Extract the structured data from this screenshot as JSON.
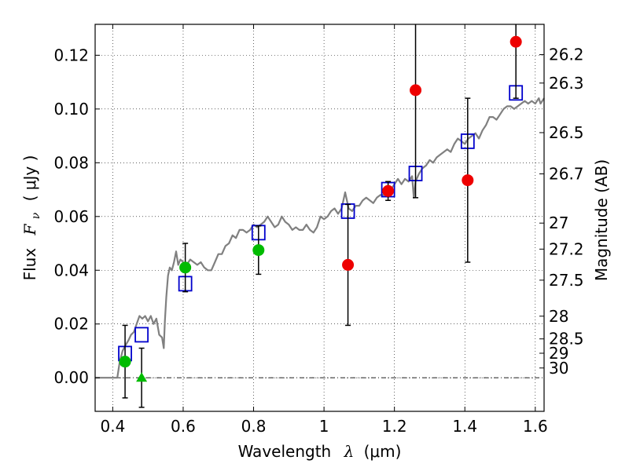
{
  "chart_data": {
    "type": "scatter",
    "xlabel_prefix": "Wavelength",
    "xlabel_lambda": "λ",
    "xlabel_unit": "(μm)",
    "ylabel_prefix": "Flux",
    "ylabel_symbol": "F",
    "ylabel_sub": "ν",
    "ylabel_unit": "( μJy )",
    "y2label": "Magnitude (AB)",
    "xlim": [
      0.35,
      1.625
    ],
    "ylim": [
      -0.0125,
      0.1315
    ],
    "x_ticks": [
      {
        "value": 0.4,
        "label": "0.4"
      },
      {
        "value": 0.6,
        "label": "0.6"
      },
      {
        "value": 0.8,
        "label": "0.8"
      },
      {
        "value": 1.0,
        "label": "1"
      },
      {
        "value": 1.2,
        "label": "1.2"
      },
      {
        "value": 1.4,
        "label": "1.4"
      },
      {
        "value": 1.6,
        "label": "1.6"
      }
    ],
    "y_ticks": [
      {
        "value": 0.0,
        "label": "0.00"
      },
      {
        "value": 0.02,
        "label": "0.02"
      },
      {
        "value": 0.04,
        "label": "0.04"
      },
      {
        "value": 0.06,
        "label": "0.06"
      },
      {
        "value": 0.08,
        "label": "0.08"
      },
      {
        "value": 0.1,
        "label": "0.10"
      },
      {
        "value": 0.12,
        "label": "0.12"
      }
    ],
    "mag_ticks": [
      {
        "mag": 26.2,
        "label": "26.2"
      },
      {
        "mag": 26.3,
        "label": "26.3"
      },
      {
        "mag": 26.5,
        "label": "26.5"
      },
      {
        "mag": 26.7,
        "label": "26.7"
      },
      {
        "mag": 27.0,
        "label": "27"
      },
      {
        "mag": 27.2,
        "label": "27.2"
      },
      {
        "mag": 27.5,
        "label": "27.5"
      },
      {
        "mag": 28.0,
        "label": "28"
      },
      {
        "mag": 28.5,
        "label": "28.5"
      },
      {
        "mag": 29.0,
        "label": "29"
      },
      {
        "mag": 30.0,
        "label": "30"
      }
    ],
    "grid": true,
    "series": [
      {
        "name": "model-sed",
        "style": "line",
        "color": "#808080",
        "points": [
          [
            0.35,
            0.0
          ],
          [
            0.4,
            0.0
          ],
          [
            0.413,
            0.0
          ],
          [
            0.42,
            0.006
          ],
          [
            0.428,
            0.01
          ],
          [
            0.436,
            0.012
          ],
          [
            0.445,
            0.014
          ],
          [
            0.452,
            0.016
          ],
          [
            0.46,
            0.017
          ],
          [
            0.468,
            0.02
          ],
          [
            0.476,
            0.023
          ],
          [
            0.484,
            0.022
          ],
          [
            0.492,
            0.023
          ],
          [
            0.5,
            0.021
          ],
          [
            0.508,
            0.023
          ],
          [
            0.516,
            0.02
          ],
          [
            0.524,
            0.022
          ],
          [
            0.532,
            0.016
          ],
          [
            0.54,
            0.015
          ],
          [
            0.545,
            0.011
          ],
          [
            0.548,
            0.021
          ],
          [
            0.552,
            0.03
          ],
          [
            0.557,
            0.038
          ],
          [
            0.562,
            0.041
          ],
          [
            0.568,
            0.04
          ],
          [
            0.574,
            0.043
          ],
          [
            0.58,
            0.047
          ],
          [
            0.586,
            0.042
          ],
          [
            0.592,
            0.044
          ],
          [
            0.6,
            0.043
          ],
          [
            0.61,
            0.042
          ],
          [
            0.62,
            0.044
          ],
          [
            0.63,
            0.043
          ],
          [
            0.64,
            0.042
          ],
          [
            0.65,
            0.043
          ],
          [
            0.66,
            0.041
          ],
          [
            0.67,
            0.04
          ],
          [
            0.68,
            0.04
          ],
          [
            0.69,
            0.043
          ],
          [
            0.7,
            0.046
          ],
          [
            0.71,
            0.046
          ],
          [
            0.72,
            0.049
          ],
          [
            0.73,
            0.05
          ],
          [
            0.74,
            0.053
          ],
          [
            0.75,
            0.052
          ],
          [
            0.76,
            0.055
          ],
          [
            0.77,
            0.055
          ],
          [
            0.78,
            0.054
          ],
          [
            0.79,
            0.055
          ],
          [
            0.8,
            0.057
          ],
          [
            0.81,
            0.056
          ],
          [
            0.82,
            0.057
          ],
          [
            0.83,
            0.058
          ],
          [
            0.84,
            0.06
          ],
          [
            0.85,
            0.058
          ],
          [
            0.86,
            0.056
          ],
          [
            0.87,
            0.057
          ],
          [
            0.88,
            0.06
          ],
          [
            0.89,
            0.058
          ],
          [
            0.9,
            0.057
          ],
          [
            0.91,
            0.055
          ],
          [
            0.92,
            0.056
          ],
          [
            0.93,
            0.055
          ],
          [
            0.94,
            0.055
          ],
          [
            0.95,
            0.057
          ],
          [
            0.96,
            0.055
          ],
          [
            0.97,
            0.054
          ],
          [
            0.98,
            0.056
          ],
          [
            0.99,
            0.06
          ],
          [
            1.0,
            0.059
          ],
          [
            1.01,
            0.06
          ],
          [
            1.02,
            0.062
          ],
          [
            1.03,
            0.063
          ],
          [
            1.04,
            0.061
          ],
          [
            1.05,
            0.063
          ],
          [
            1.06,
            0.069
          ],
          [
            1.07,
            0.063
          ],
          [
            1.08,
            0.062
          ],
          [
            1.09,
            0.064
          ],
          [
            1.1,
            0.064
          ],
          [
            1.11,
            0.066
          ],
          [
            1.12,
            0.067
          ],
          [
            1.13,
            0.066
          ],
          [
            1.14,
            0.065
          ],
          [
            1.15,
            0.067
          ],
          [
            1.16,
            0.068
          ],
          [
            1.17,
            0.068
          ],
          [
            1.18,
            0.07
          ],
          [
            1.19,
            0.07
          ],
          [
            1.2,
            0.072
          ],
          [
            1.21,
            0.074
          ],
          [
            1.22,
            0.072
          ],
          [
            1.23,
            0.074
          ],
          [
            1.24,
            0.073
          ],
          [
            1.25,
            0.075
          ],
          [
            1.255,
            0.067
          ],
          [
            1.26,
            0.073
          ],
          [
            1.27,
            0.076
          ],
          [
            1.28,
            0.078
          ],
          [
            1.29,
            0.079
          ],
          [
            1.3,
            0.081
          ],
          [
            1.31,
            0.08
          ],
          [
            1.32,
            0.082
          ],
          [
            1.33,
            0.083
          ],
          [
            1.34,
            0.084
          ],
          [
            1.35,
            0.085
          ],
          [
            1.36,
            0.084
          ],
          [
            1.37,
            0.087
          ],
          [
            1.38,
            0.089
          ],
          [
            1.39,
            0.088
          ],
          [
            1.4,
            0.087
          ],
          [
            1.41,
            0.089
          ],
          [
            1.42,
            0.09
          ],
          [
            1.43,
            0.091
          ],
          [
            1.44,
            0.089
          ],
          [
            1.45,
            0.092
          ],
          [
            1.46,
            0.094
          ],
          [
            1.47,
            0.097
          ],
          [
            1.48,
            0.097
          ],
          [
            1.49,
            0.096
          ],
          [
            1.5,
            0.098
          ],
          [
            1.51,
            0.1
          ],
          [
            1.52,
            0.101
          ],
          [
            1.53,
            0.101
          ],
          [
            1.54,
            0.1
          ],
          [
            1.55,
            0.101
          ],
          [
            1.56,
            0.102
          ],
          [
            1.57,
            0.103
          ],
          [
            1.58,
            0.102
          ],
          [
            1.59,
            0.103
          ],
          [
            1.6,
            0.102
          ],
          [
            1.61,
            0.104
          ],
          [
            1.615,
            0.102
          ],
          [
            1.625,
            0.104
          ]
        ]
      },
      {
        "name": "model-photometry",
        "style": "open-square",
        "color": "#0000cc",
        "points": [
          [
            0.435,
            0.009
          ],
          [
            0.482,
            0.016
          ],
          [
            0.606,
            0.035
          ],
          [
            0.814,
            0.054
          ],
          [
            1.068,
            0.062
          ],
          [
            1.182,
            0.07
          ],
          [
            1.26,
            0.076
          ],
          [
            1.408,
            0.088
          ],
          [
            1.545,
            0.106
          ]
        ]
      },
      {
        "name": "ground-based-photometry",
        "style": "filled-circle",
        "color": "#00bb00",
        "points": [
          [
            0.435,
            0.006
          ],
          [
            0.606,
            0.041
          ],
          [
            0.814,
            0.0475
          ]
        ],
        "errors": [
          0.0135,
          0.009,
          0.009
        ]
      },
      {
        "name": "ground-based-upper-limit",
        "style": "filled-triangle",
        "color": "#00bb00",
        "points": [
          [
            0.482,
            0.0
          ]
        ],
        "errors": [
          0.011
        ]
      },
      {
        "name": "nir-photometry",
        "style": "filled-circle",
        "color": "#ee0000",
        "points": [
          [
            1.068,
            0.042
          ],
          [
            1.182,
            0.0695
          ],
          [
            1.26,
            0.107
          ],
          [
            1.408,
            0.0735
          ],
          [
            1.545,
            0.125
          ]
        ],
        "errors": [
          0.0225,
          0.0035,
          0.04,
          0.0305,
          0.021
        ]
      }
    ]
  }
}
